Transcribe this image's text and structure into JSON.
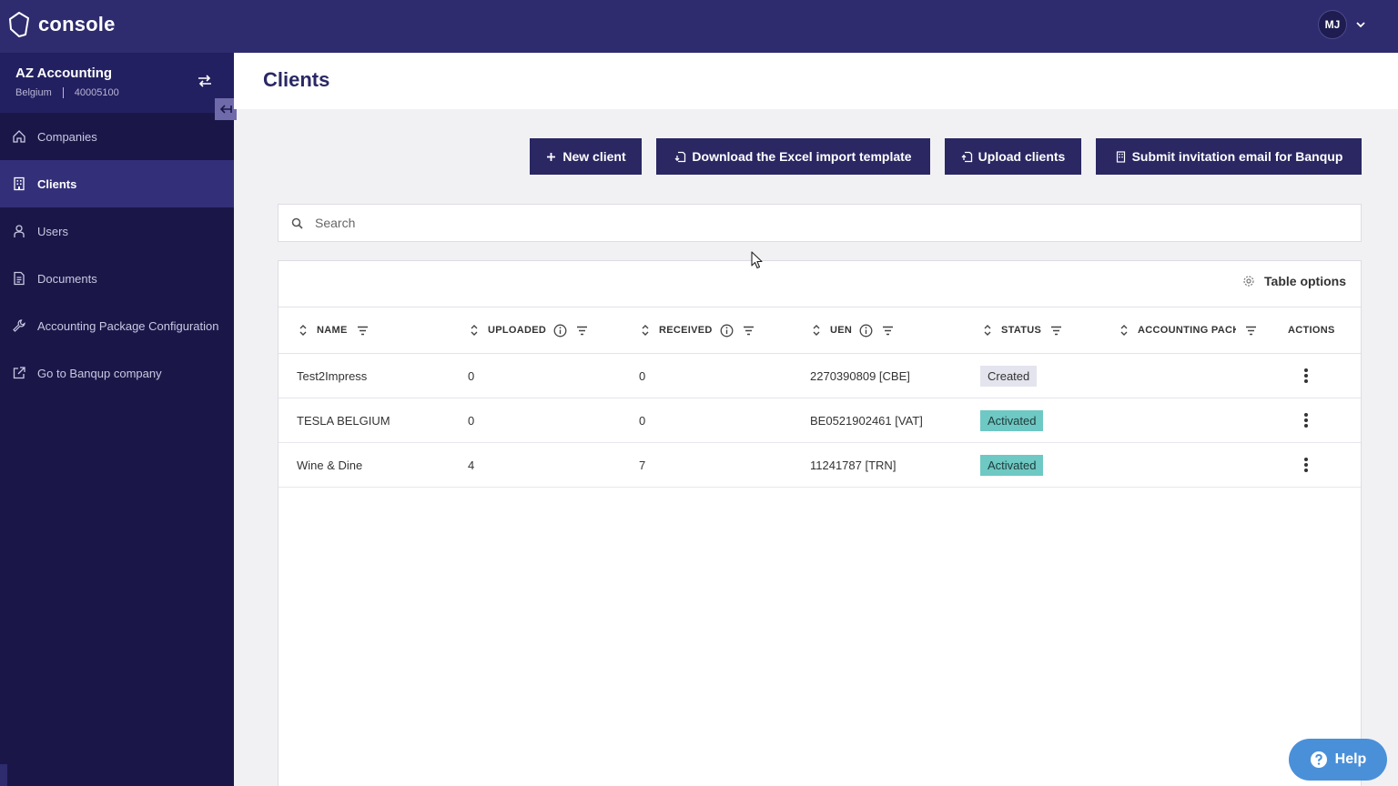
{
  "app": {
    "logo_text": "console",
    "user_initials": "MJ"
  },
  "company": {
    "name": "AZ Accounting",
    "country": "Belgium",
    "number": "40005100"
  },
  "sidebar": {
    "items": [
      {
        "label": "Companies",
        "icon": "home-icon",
        "active": false
      },
      {
        "label": "Clients",
        "icon": "building-icon",
        "active": true
      },
      {
        "label": "Users",
        "icon": "user-icon",
        "active": false
      },
      {
        "label": "Documents",
        "icon": "document-icon",
        "active": false
      },
      {
        "label": "Accounting Package Configuration",
        "icon": "wrench-icon",
        "active": false
      },
      {
        "label": "Go to Banqup company",
        "icon": "external-link-icon",
        "active": false
      }
    ]
  },
  "page": {
    "title": "Clients"
  },
  "toolbar": {
    "new_client": "New client",
    "download_template": "Download the Excel import template",
    "upload_clients": "Upload clients",
    "submit_invitation": "Submit invitation email for Banqup"
  },
  "search": {
    "placeholder": "Search"
  },
  "table": {
    "options_label": "Table options",
    "columns": {
      "name": "NAME",
      "uploaded": "UPLOADED",
      "received": "RECEIVED",
      "uen": "UEN",
      "status": "STATUS",
      "accounting_package": "ACCOUNTING PACKAGE",
      "actions": "ACTIONS"
    },
    "rows": [
      {
        "name": "Test2Impress",
        "uploaded": "0",
        "received": "0",
        "uen": "2270390809 [CBE]",
        "status": "Created"
      },
      {
        "name": "TESLA BELGIUM",
        "uploaded": "0",
        "received": "0",
        "uen": "BE0521902461 [VAT]",
        "status": "Activated"
      },
      {
        "name": "Wine & Dine",
        "uploaded": "4",
        "received": "7",
        "uen": "11241787 [TRN]",
        "status": "Activated"
      }
    ]
  },
  "help": {
    "label": "Help"
  },
  "colors": {
    "topbar": "#2e2b6e",
    "sidebar": "#1a1748",
    "button": "#2a2763",
    "badge_activated": "#6ec8c3",
    "badge_created": "#e4e4ee",
    "help": "#4a90d9"
  }
}
